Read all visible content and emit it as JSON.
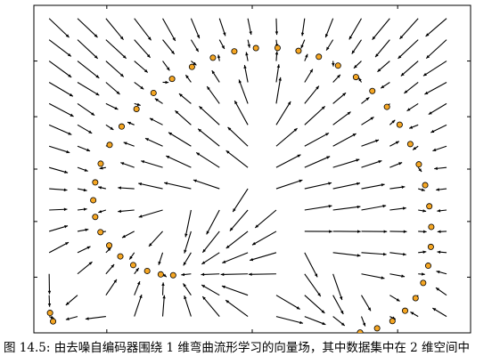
{
  "caption": "图 14.5: 由去噪自编码器围绕 1 维弯曲流形学习的向量场，其中数据集中在 2 维空间中",
  "chart_data": {
    "type": "scatter",
    "title": "",
    "xlabel": "",
    "ylabel": "",
    "xlim": [
      -1.0,
      1.0
    ],
    "ylim": [
      -1.0,
      1.0
    ],
    "grid": false,
    "legend": "none",
    "point_color": "#f5a623",
    "point_edge_color": "#000000",
    "arrow_color": "#000000",
    "series": [
      {
        "kind": "points",
        "x": [
          -0.362,
          -0.419,
          -0.481,
          -0.545,
          -0.604,
          -0.655,
          -0.695,
          -0.719,
          -0.728,
          -0.719,
          -0.694,
          -0.653,
          -0.598,
          -0.53,
          -0.452,
          -0.367,
          -0.276,
          -0.18,
          -0.082,
          0.017,
          0.116,
          0.212,
          0.305,
          0.393,
          0.475,
          0.55,
          0.617,
          0.675,
          0.724,
          0.763,
          0.792,
          0.811,
          0.82,
          0.818,
          0.806,
          0.783
        ],
        "y": [
          -0.648,
          -0.643,
          -0.622,
          -0.586,
          -0.533,
          -0.466,
          -0.385,
          -0.292,
          -0.19,
          -0.081,
          0.033,
          0.148,
          0.26,
          0.367,
          0.465,
          0.551,
          0.624,
          0.68,
          0.719,
          0.739,
          0.74,
          0.722,
          0.686,
          0.632,
          0.562,
          0.477,
          0.38,
          0.271,
          0.153,
          0.029,
          -0.098,
          -0.227,
          -0.353,
          -0.475,
          -0.59,
          -0.695
        ]
      },
      {
        "kind": "points",
        "x": [
          -0.926,
          -0.912
        ],
        "y": [
          -0.878,
          -0.93
        ]
      },
      {
        "kind": "points",
        "x": [
          0.748,
          0.7,
          0.642,
          0.572,
          0.494
        ],
        "y": [
          -0.788,
          -0.865,
          -0.928,
          -0.972,
          -0.998
        ]
      },
      {
        "kind": "vector_field",
        "x": [
          -0.93,
          -0.8,
          -0.67,
          -0.54,
          -0.41,
          -0.28,
          -0.15,
          -0.02,
          0.11,
          0.24,
          0.37,
          0.5,
          0.63,
          0.76,
          0.89
        ],
        "y": [
          0.92,
          0.79,
          0.66,
          0.53,
          0.4,
          0.27,
          0.14,
          0.01,
          -0.12,
          -0.25,
          -0.38,
          -0.51,
          -0.64,
          -0.77,
          -0.9
        ],
        "direction": "towards-manifold"
      }
    ]
  }
}
